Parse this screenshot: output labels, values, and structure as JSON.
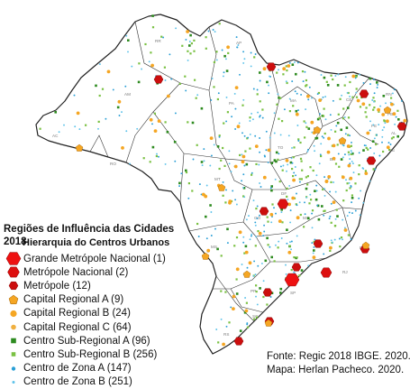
{
  "legend": {
    "title": "Regiões de Influência das Cidades 2018",
    "subtitle": "Hierarquia do Centros Urbanos",
    "items": [
      {
        "label": "Grande Metrópole Nacional (1)",
        "shape": "hexagon",
        "color": "#ee1111",
        "size": 8
      },
      {
        "label": "Metrópole Nacional (2)",
        "shape": "hexagon",
        "color": "#dd0f0f",
        "size": 6.5
      },
      {
        "label": "Metrópole (12)",
        "shape": "hexagon",
        "color": "#cc0e0e",
        "size": 5
      },
      {
        "label": "Capital Regional A (9)",
        "shape": "pentagon",
        "color": "#f5a623",
        "size": 5.5
      },
      {
        "label": "Capital Regional B (24)",
        "shape": "circle",
        "color": "#f5a623",
        "size": 3.6
      },
      {
        "label": "Capital Regional C (64)",
        "shape": "circle",
        "color": "#f0b040",
        "size": 2.8
      },
      {
        "label": "Centro Sub-Regional A (96)",
        "shape": "square",
        "color": "#2e8b20",
        "size": 5.5
      },
      {
        "label": "Centro Sub-Regional B (256)",
        "shape": "square",
        "color": "#7ac143",
        "size": 4.5
      },
      {
        "label": "Centro de Zona A (147)",
        "shape": "circle",
        "color": "#2a9fd6",
        "size": 2.2
      },
      {
        "label": "Centro de Zona B (251)",
        "shape": "circle",
        "color": "#5ec3ea",
        "size": 1.5
      }
    ]
  },
  "credits": {
    "source": "Fonte: Regic 2018 IBGE. 2020.",
    "author": "Mapa: Herlan Pacheco. 2020."
  },
  "state_labels": [
    "RR",
    "AP",
    "AM",
    "PA",
    "MA",
    "CE",
    "RN",
    "PB",
    "PE",
    "AL",
    "SE",
    "BA",
    "PI",
    "TO",
    "AC",
    "RO",
    "MT",
    "DF",
    "GO",
    "MG",
    "ES",
    "RJ",
    "SP",
    "PR",
    "SC",
    "RS",
    "MS"
  ]
}
